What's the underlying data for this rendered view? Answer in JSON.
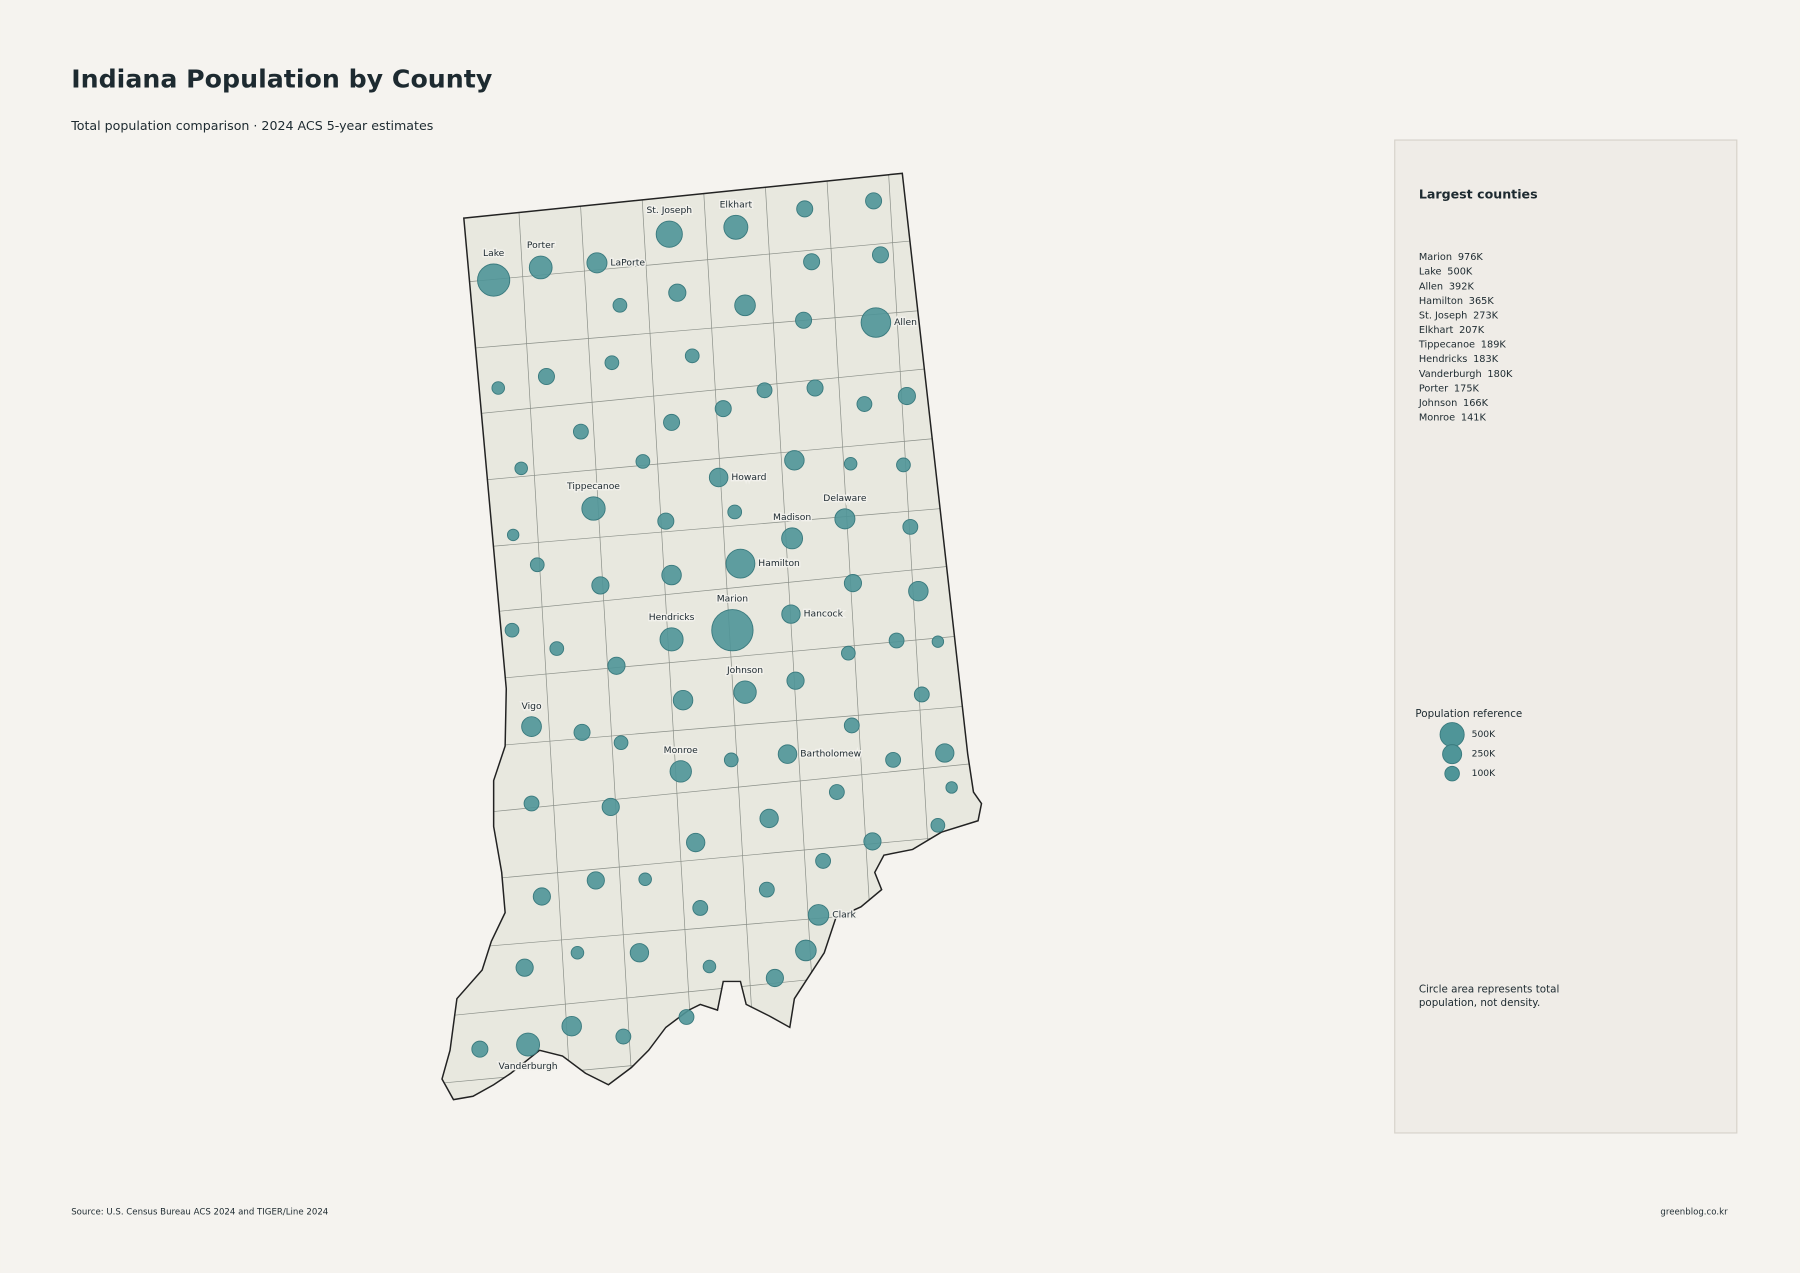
{
  "header": {
    "title": "Indiana Population by County",
    "subtitle": "Total population comparison · 2024 ACS 5-year estimates"
  },
  "map": {
    "labeled_counties": [
      {
        "name": "Marion",
        "value": 976000,
        "value_label": "976K"
      },
      {
        "name": "Lake",
        "value": 500000,
        "value_label": "500K"
      },
      {
        "name": "Allen",
        "value": 392000,
        "value_label": "392K"
      },
      {
        "name": "Hamilton",
        "value": 365000,
        "value_label": "365K"
      },
      {
        "name": "St. Joseph",
        "value": 273000,
        "value_label": "273K"
      },
      {
        "name": "Elkhart",
        "value": 207000,
        "value_label": "207K"
      },
      {
        "name": "Tippecanoe",
        "value": 189000,
        "value_label": "189K"
      },
      {
        "name": "Hendricks",
        "value": 183000,
        "value_label": "183K"
      },
      {
        "name": "Vanderburgh",
        "value": 180000,
        "value_label": "180K"
      },
      {
        "name": "Porter",
        "value": 175000,
        "value_label": "175K"
      },
      {
        "name": "Johnson",
        "value": 166000,
        "value_label": "166K"
      },
      {
        "name": "Monroe",
        "value": 141000,
        "value_label": "141K"
      },
      {
        "name": "LaPorte",
        "value": 112000
      },
      {
        "name": "Howard",
        "value": 83000
      },
      {
        "name": "Delaware",
        "value": 112000
      },
      {
        "name": "Madison",
        "value": 131000
      },
      {
        "name": "Hancock",
        "value": 80000
      },
      {
        "name": "Vigo",
        "value": 106000
      },
      {
        "name": "Bartholomew",
        "value": 83000
      },
      {
        "name": "Clark",
        "value": 122000
      }
    ],
    "other_county_values": [
      45000,
      45000,
      45000,
      45000,
      20000,
      61000,
      124000,
      45000,
      11000,
      45000,
      20000,
      20000,
      45000,
      31000,
      45000,
      31000,
      61000,
      31000,
      45000,
      11000,
      20000,
      101000,
      11000,
      20000,
      5000,
      20000,
      45000,
      31000,
      20000,
      61000,
      101000,
      61000,
      101000,
      20000,
      20000,
      31000,
      5000,
      20000,
      61000,
      101000,
      61000,
      31000,
      45000,
      20000,
      31000,
      20000,
      31000,
      80000,
      31000,
      61000,
      31000,
      5000,
      80000,
      80000,
      61000,
      20000,
      31000,
      61000,
      61000,
      11000,
      31000,
      31000,
      124000,
      80000,
      11000,
      11000,
      61000,
      61000,
      101000,
      31000,
      31000,
      45000
    ]
  },
  "sidebar": {
    "heading": "Largest counties",
    "legend": {
      "title": "Population reference",
      "references": [
        {
          "value": 500000,
          "label": "500K"
        },
        {
          "value": 250000,
          "label": "250K"
        },
        {
          "value": 100000,
          "label": "100K"
        }
      ]
    },
    "note_lines": [
      "Circle area represents total",
      "population, not density."
    ]
  },
  "footer": {
    "source": "Source: U.S. Census Bureau ACS 2024 and TIGER/Line 2024",
    "credit": "greenblog.co.kr"
  }
}
